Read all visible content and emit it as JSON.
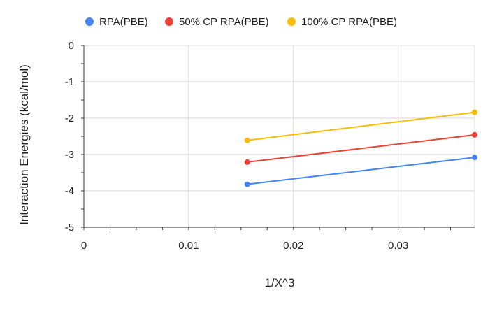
{
  "chart_data": {
    "type": "line",
    "title": "",
    "xlabel": "1/X^3",
    "ylabel": "Interaction Energies (kcal/mol)",
    "xlim": [
      0,
      0.0373
    ],
    "ylim": [
      -5,
      0
    ],
    "x_ticks": [
      0,
      0.01,
      0.02,
      0.03
    ],
    "x_tick_labels": [
      "0",
      "0.01",
      "0.02",
      "0.03"
    ],
    "y_ticks": [
      0,
      -1,
      -2,
      -3,
      -4,
      -5
    ],
    "y_tick_labels": [
      "0",
      "-1",
      "-2",
      "-3",
      "-4",
      "-5"
    ],
    "grid": true,
    "legend_position": "top",
    "series": [
      {
        "name": "RPA(PBE)",
        "color": "#4285F4",
        "x": [
          0.0156,
          0.0373
        ],
        "y": [
          -3.82,
          -3.08
        ]
      },
      {
        "name": "50% CP RPA(PBE)",
        "color": "#EA4335",
        "x": [
          0.0156,
          0.0373
        ],
        "y": [
          -3.21,
          -2.46
        ]
      },
      {
        "name": "100% CP RPA(PBE)",
        "color": "#FBBC04",
        "x": [
          0.0156,
          0.0373
        ],
        "y": [
          -2.61,
          -1.84
        ]
      }
    ]
  }
}
